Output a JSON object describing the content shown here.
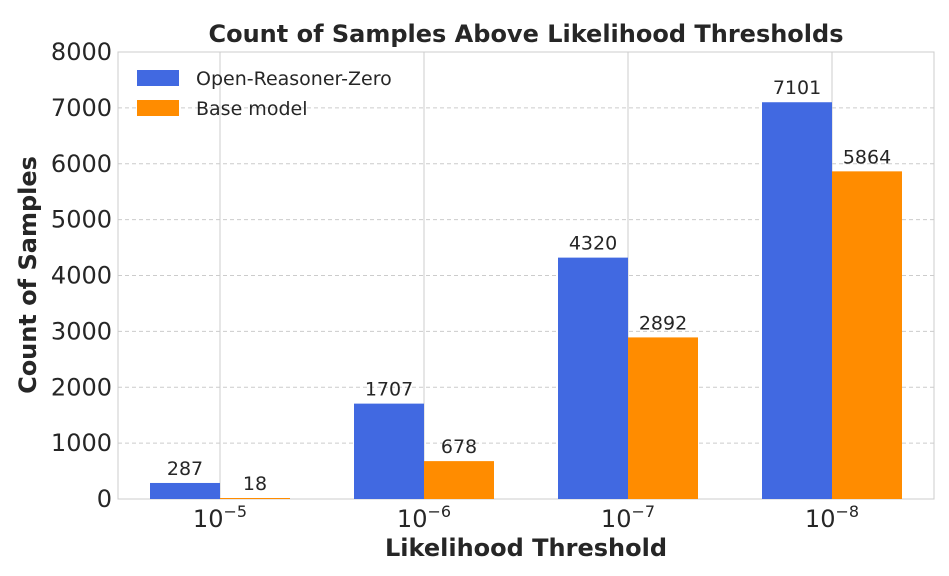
{
  "chart_data": {
    "type": "bar",
    "title": "Count of Samples Above Likelihood Thresholds",
    "xlabel": "Likelihood Threshold",
    "ylabel": "Count of Samples",
    "categories": [
      {
        "base": "10",
        "exp": "−5"
      },
      {
        "base": "10",
        "exp": "−6"
      },
      {
        "base": "10",
        "exp": "−7"
      },
      {
        "base": "10",
        "exp": "−8"
      }
    ],
    "ylim": [
      0,
      8000
    ],
    "yticks": [
      0,
      1000,
      2000,
      3000,
      4000,
      5000,
      6000,
      7000,
      8000
    ],
    "grid": true,
    "legend_position": "top-left",
    "series": [
      {
        "name": "Open-Reasoner-Zero",
        "color": "#4169e1",
        "values": [
          287,
          1707,
          4320,
          7101
        ]
      },
      {
        "name": "Base model",
        "color": "#ff8c00",
        "values": [
          18,
          678,
          2892,
          5864
        ]
      }
    ]
  }
}
